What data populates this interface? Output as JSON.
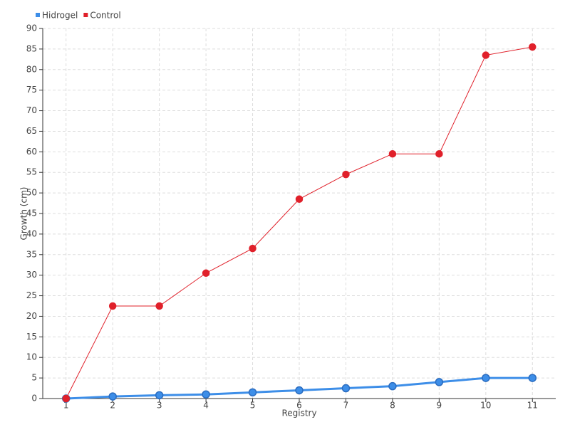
{
  "chart_data": {
    "type": "line",
    "categories": [
      "1",
      "2",
      "3",
      "4",
      "5",
      "6",
      "7",
      "8",
      "9",
      "10",
      "11"
    ],
    "series": [
      {
        "name": "Hidrogel",
        "color": "#3d8ee8",
        "values": [
          0,
          0.5,
          0.8,
          1,
          1.5,
          2,
          2.5,
          3,
          4,
          5,
          5
        ]
      },
      {
        "name": "Control",
        "color": "#e0202a",
        "values": [
          0,
          22.5,
          22.5,
          30.5,
          36.5,
          48.5,
          54.5,
          59.5,
          59.5,
          83.5,
          85.5
        ]
      }
    ],
    "x_label": "Registry",
    "y_label": "Growth (cm)",
    "ylim": [
      0,
      90
    ],
    "yticks": [
      0,
      5,
      10,
      15,
      20,
      25,
      30,
      35,
      40,
      45,
      50,
      55,
      60,
      65,
      70,
      75,
      80,
      85,
      90
    ],
    "grid": true,
    "legend": "top-left"
  }
}
